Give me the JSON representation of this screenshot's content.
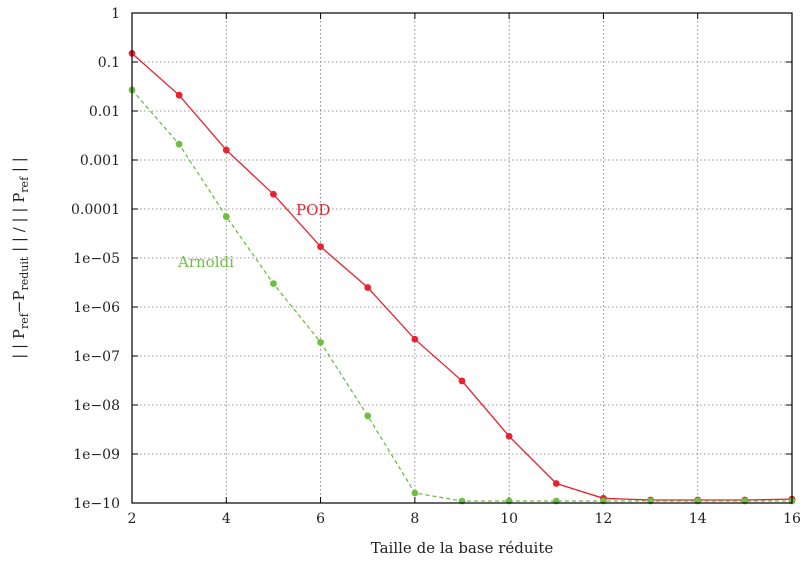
{
  "chart_data": {
    "type": "line",
    "xlabel": "Taille de la base réduite",
    "ylabel": "| | P_ref−P_reduit | | / | | P_ref | |",
    "ylabel_parts": {
      "open": "| | P",
      "ref1": "ref",
      "minus": "−P",
      "reduit": "reduit",
      "mid": " | | / | | P",
      "ref2": "ref",
      "close": " | |"
    },
    "xlim": [
      2,
      16
    ],
    "ylim": [
      1e-10,
      1
    ],
    "yscale": "log",
    "grid": true,
    "x_ticks": [
      "2",
      "4",
      "6",
      "8",
      "10",
      "12",
      "14",
      "16"
    ],
    "y_ticks": [
      "1e−10",
      "1e−09",
      "1e−08",
      "1e−07",
      "1e−06",
      "1e−05",
      "0.0001",
      "0.001",
      "0.01",
      "0.1",
      "1"
    ],
    "series": [
      {
        "name": "POD",
        "color": "#e8222e",
        "line_style": "solid",
        "x": [
          2,
          3,
          4,
          5,
          6,
          7,
          8,
          9,
          10,
          11,
          12,
          13,
          14,
          15,
          16
        ],
        "y": [
          0.15,
          0.021,
          0.0016,
          0.0002,
          1.7e-05,
          2.5e-06,
          2.2e-07,
          3.1e-08,
          2.3e-09,
          2.5e-10,
          1.25e-10,
          1.15e-10,
          1.15e-10,
          1.15e-10,
          1.2e-10
        ]
      },
      {
        "name": "Arnoldi",
        "color": "#6fbe44",
        "line_style": "dashed",
        "x": [
          2,
          3,
          4,
          5,
          6,
          7,
          8,
          9,
          10,
          11,
          12,
          13,
          14,
          15,
          16
        ],
        "y": [
          0.027,
          0.0021,
          7e-05,
          3e-06,
          1.9e-07,
          6e-09,
          1.6e-10,
          1.1e-10,
          1.1e-10,
          1.1e-10,
          1.1e-10,
          1.1e-10,
          1.1e-10,
          1.1e-10,
          1.1e-10
        ]
      }
    ]
  }
}
